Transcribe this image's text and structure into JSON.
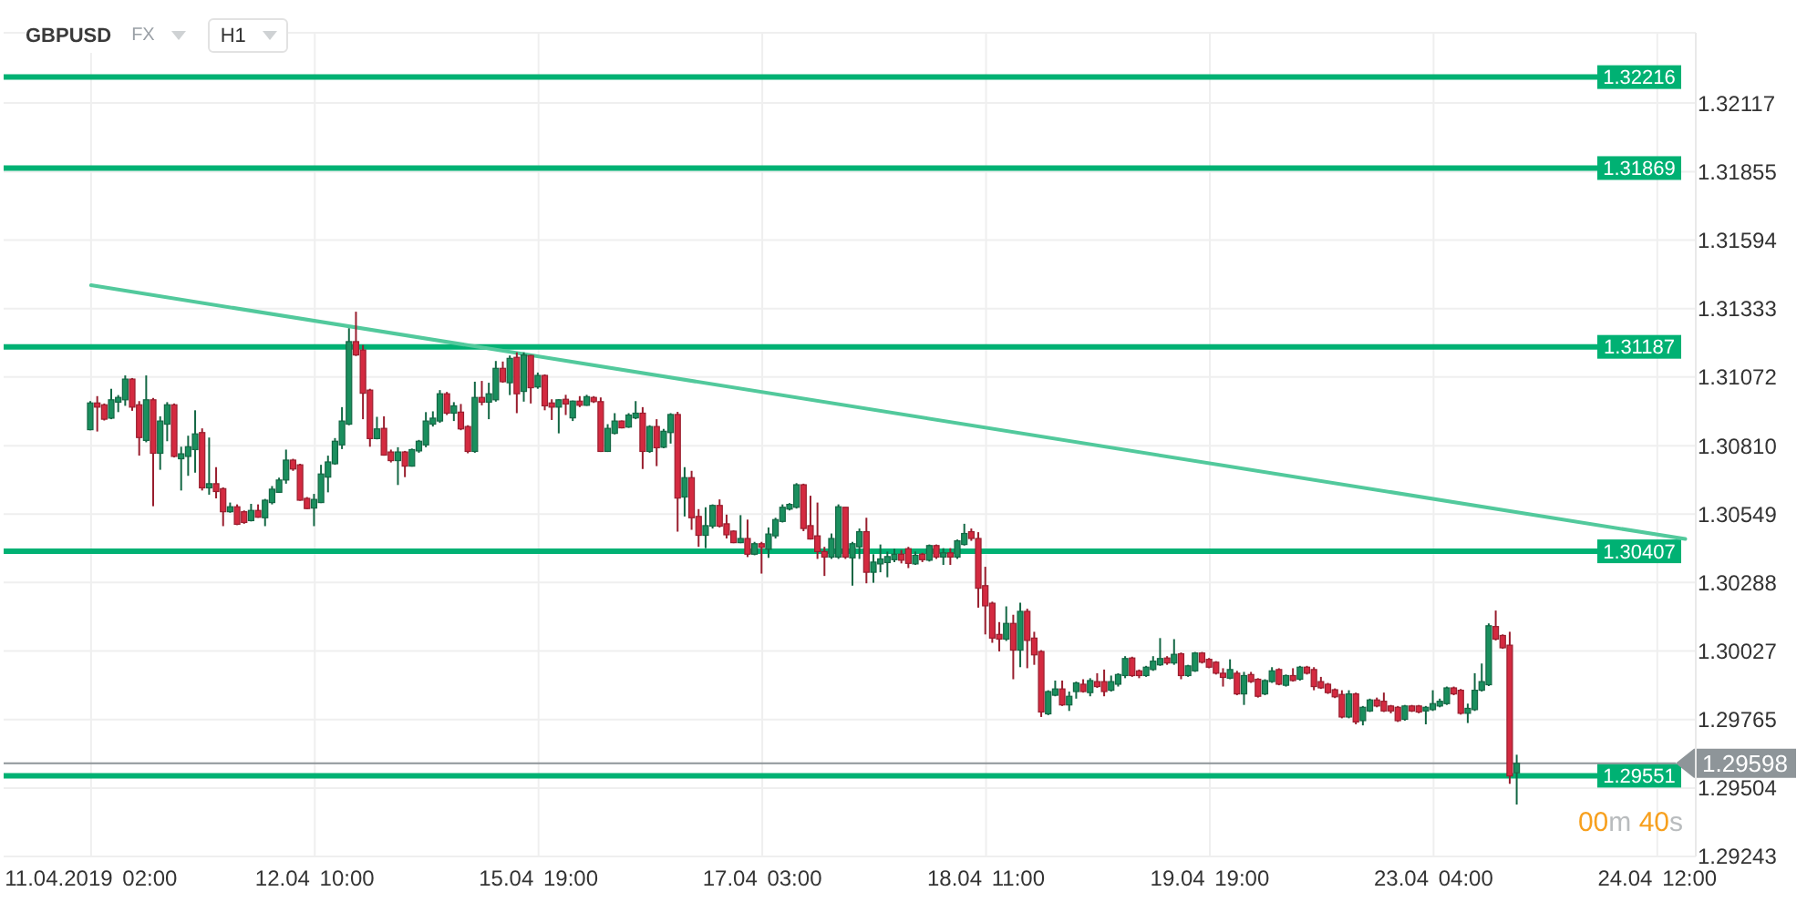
{
  "chart_data": {
    "type": "candlestick",
    "title": "GBPUSD",
    "categories": [
      "11.04.2019 02:00",
      null,
      null,
      null,
      null,
      null,
      null,
      null,
      null,
      null,
      null,
      null,
      null,
      null,
      null,
      null,
      null,
      null,
      null,
      null,
      null,
      null,
      null,
      null,
      null,
      null,
      null,
      null,
      null,
      null,
      null,
      null,
      "12.04 10:00",
      null,
      null,
      null,
      null,
      null,
      null,
      null,
      null,
      null,
      null,
      null,
      null,
      null,
      null,
      null,
      null,
      null,
      null,
      null,
      null,
      null,
      null,
      null,
      null,
      null,
      null,
      null,
      null,
      null,
      null,
      null,
      "15.04 19:00",
      null,
      null,
      null,
      null,
      null,
      null,
      null,
      null,
      null,
      null,
      null,
      null,
      null,
      null,
      null,
      null,
      null,
      null,
      null,
      null,
      null,
      null,
      null,
      null,
      null,
      null,
      null,
      null,
      null,
      null,
      null,
      "17.04 03:00",
      null,
      null,
      null,
      null,
      null,
      null,
      null,
      null,
      null,
      null,
      null,
      null,
      null,
      null,
      null,
      null,
      null,
      null,
      null,
      null,
      null,
      null,
      null,
      null,
      null,
      null,
      null,
      null,
      null,
      null,
      null,
      "18.04 11:00",
      null,
      null,
      null,
      null,
      null,
      null,
      null,
      null,
      null,
      null,
      null,
      null,
      null,
      null,
      null,
      null,
      null,
      null,
      null,
      null,
      null,
      null,
      null,
      null,
      null,
      null,
      null,
      null,
      null,
      null,
      null,
      "19.04 19:00",
      null,
      null,
      null,
      null,
      null,
      null,
      null,
      null,
      null,
      null,
      null,
      null,
      null,
      null,
      null,
      null,
      null,
      null,
      null,
      null,
      null,
      null,
      null,
      null,
      null,
      null,
      null,
      null,
      null,
      null,
      null,
      "23.04 04:00",
      null,
      null,
      null,
      null,
      null,
      null,
      null,
      null,
      null,
      null,
      null,
      null,
      null,
      null,
      null,
      null,
      null,
      null,
      null,
      null,
      null,
      null,
      null,
      null,
      null,
      null,
      null,
      null,
      null,
      null,
      null,
      "24.04 12:00",
      null,
      null,
      null,
      null,
      null
    ],
    "ohlc": [
      [
        1.30871,
        1.3098,
        1.30869,
        1.30973
      ],
      [
        1.30973,
        1.30999,
        1.30864,
        1.30957
      ],
      [
        1.30966,
        1.30971,
        1.30906,
        1.30911
      ],
      [
        1.30915,
        1.31027,
        1.30911,
        1.30985
      ],
      [
        1.30976,
        1.31003,
        1.30938,
        1.30994
      ],
      [
        1.30985,
        1.31078,
        1.30962,
        1.31064
      ],
      [
        1.31064,
        1.31068,
        1.30943,
        1.30957
      ],
      [
        1.30966,
        1.3098,
        1.30772,
        1.30841
      ],
      [
        1.3083,
        1.31078,
        1.30823,
        1.30985
      ],
      [
        1.30985,
        1.30992,
        1.30579,
        1.30781
      ],
      [
        1.30781,
        1.30922,
        1.30718,
        1.30904
      ],
      [
        1.30892,
        1.30976,
        1.30827,
        1.30966
      ],
      [
        1.30966,
        1.30971,
        1.30765,
        1.30769
      ],
      [
        1.3076,
        1.30806,
        1.30639,
        1.30779
      ],
      [
        1.30769,
        1.30848,
        1.30695,
        1.30806
      ],
      [
        1.30795,
        1.30945,
        1.30707,
        1.30855
      ],
      [
        1.3086,
        1.30876,
        1.30639,
        1.30649
      ],
      [
        1.30649,
        1.30841,
        1.30623,
        1.30665
      ],
      [
        1.30665,
        1.30728,
        1.30609,
        1.30635
      ],
      [
        1.30646,
        1.30651,
        1.30503,
        1.30558
      ],
      [
        1.30558,
        1.30593,
        1.30554,
        1.30577
      ],
      [
        1.30577,
        1.30586,
        1.30507,
        1.3051
      ],
      [
        1.30558,
        1.30563,
        1.30512,
        1.30517
      ],
      [
        1.30524,
        1.30588,
        1.30521,
        1.30563
      ],
      [
        1.30563,
        1.30586,
        1.30535,
        1.30537
      ],
      [
        1.30535,
        1.30607,
        1.30503,
        1.30602
      ],
      [
        1.30593,
        1.30656,
        1.30586,
        1.30644
      ],
      [
        1.30632,
        1.30688,
        1.3063,
        1.30679
      ],
      [
        1.30679,
        1.30795,
        1.30665,
        1.30755
      ],
      [
        1.30755,
        1.3076,
        1.30714,
        1.30721
      ],
      [
        1.30737,
        1.30741,
        1.306,
        1.30602
      ],
      [
        1.30609,
        1.30614,
        1.30568,
        1.3057
      ],
      [
        1.30572,
        1.30626,
        1.30503,
        1.30605
      ],
      [
        1.30593,
        1.30737,
        1.30591,
        1.30702
      ],
      [
        1.3069,
        1.30772,
        1.30632,
        1.30748
      ],
      [
        1.30741,
        1.30839,
        1.30737,
        1.30827
      ],
      [
        1.30813,
        1.30957,
        1.30797,
        1.30904
      ],
      [
        1.30892,
        1.31258,
        1.30888,
        1.31207
      ],
      [
        1.31207,
        1.31321,
        1.31152,
        1.31156
      ],
      [
        1.31175,
        1.31194,
        1.30911,
        1.3101
      ],
      [
        1.31022,
        1.31027,
        1.30806,
        1.30837
      ],
      [
        1.30837,
        1.3092,
        1.30834,
        1.30874
      ],
      [
        1.30876,
        1.30922,
        1.30772,
        1.30774
      ],
      [
        1.30786,
        1.30795,
        1.30746,
        1.30753
      ],
      [
        1.30753,
        1.30804,
        1.3066,
        1.30786
      ],
      [
        1.30786,
        1.3079,
        1.3069,
        1.30732
      ],
      [
        1.30732,
        1.30799,
        1.3073,
        1.30795
      ],
      [
        1.3079,
        1.30832,
        1.30783,
        1.30827
      ],
      [
        1.30813,
        1.30938,
        1.30804,
        1.30904
      ],
      [
        1.30892,
        1.30941,
        1.30883,
        1.30915
      ],
      [
        1.30904,
        1.31022,
        1.30897,
        1.31008
      ],
      [
        1.31008,
        1.31015,
        1.30927,
        1.30934
      ],
      [
        1.30934,
        1.30976,
        1.30904,
        1.30962
      ],
      [
        1.30938,
        1.30969,
        1.30869,
        1.30874
      ],
      [
        1.30883,
        1.30888,
        1.30781,
        1.30788
      ],
      [
        1.30788,
        1.31054,
        1.30783,
        1.30994
      ],
      [
        1.30994,
        1.31057,
        1.30964,
        1.30976
      ],
      [
        1.30976,
        1.3105,
        1.30911,
        1.31008
      ],
      [
        1.30985,
        1.31133,
        1.30978,
        1.31105
      ],
      [
        1.31105,
        1.31131,
        1.3105,
        1.31054
      ],
      [
        1.3105,
        1.31154,
        1.31003,
        1.31143
      ],
      [
        1.31147,
        1.31166,
        1.30934,
        1.31008
      ],
      [
        1.31017,
        1.31166,
        1.30978,
        1.31156
      ],
      [
        1.31154,
        1.31156,
        1.30971,
        1.31031
      ],
      [
        1.31034,
        1.31089,
        1.31027,
        1.31078
      ],
      [
        1.31078,
        1.31082,
        1.30945,
        1.30962
      ],
      [
        1.30973,
        1.30987,
        1.30908,
        1.30957
      ],
      [
        1.30957,
        1.30987,
        1.30857,
        1.30985
      ],
      [
        1.30987,
        1.31004,
        1.30927,
        1.30969
      ],
      [
        1.30916,
        1.30982,
        1.30904,
        1.3098
      ],
      [
        1.3098,
        1.30999,
        1.30957,
        1.30964
      ],
      [
        1.30964,
        1.31004,
        1.30962,
        1.30997
      ],
      [
        1.30994,
        1.30999,
        1.30973,
        1.30978
      ],
      [
        1.30978,
        1.30994,
        1.30786,
        1.30788
      ],
      [
        1.30788,
        1.30892,
        1.30786,
        1.30876
      ],
      [
        1.30857,
        1.30934,
        1.30853,
        1.30904
      ],
      [
        1.30904,
        1.30906,
        1.30876,
        1.30878
      ],
      [
        1.30881,
        1.30934,
        1.30878,
        1.30927
      ],
      [
        1.30916,
        1.3098,
        1.30911,
        1.30934
      ],
      [
        1.30934,
        1.30957,
        1.30721,
        1.30788
      ],
      [
        1.30788,
        1.30888,
        1.30783,
        1.30883
      ],
      [
        1.30883,
        1.30911,
        1.30732,
        1.30802
      ],
      [
        1.30804,
        1.30874,
        1.308,
        1.30865
      ],
      [
        1.3086,
        1.30934,
        1.30818,
        1.30929
      ],
      [
        1.30929,
        1.30939,
        1.30482,
        1.3061
      ],
      [
        1.30614,
        1.30728,
        1.3054,
        1.30688
      ],
      [
        1.30688,
        1.30714,
        1.30489,
        1.30535
      ],
      [
        1.3054,
        1.30568,
        1.30424,
        1.30468
      ],
      [
        1.30468,
        1.30575,
        1.30419,
        1.30505
      ],
      [
        1.30503,
        1.30586,
        1.30494,
        1.30582
      ],
      [
        1.30582,
        1.30605,
        1.30498,
        1.30503
      ],
      [
        1.30512,
        1.30547,
        1.30456,
        1.3047
      ],
      [
        1.30484,
        1.30487,
        1.30438,
        1.3044
      ],
      [
        1.3044,
        1.30545,
        1.30438,
        1.30456
      ],
      [
        1.30456,
        1.30528,
        1.30385,
        1.30396
      ],
      [
        1.30396,
        1.30443,
        1.30392,
        1.30436
      ],
      [
        1.30436,
        1.30443,
        1.30322,
        1.30422
      ],
      [
        1.30415,
        1.30498,
        1.30382,
        1.30473
      ],
      [
        1.30466,
        1.30535,
        1.30456,
        1.30528
      ],
      [
        1.30521,
        1.30586,
        1.30517,
        1.30575
      ],
      [
        1.30568,
        1.30591,
        1.30563,
        1.30586
      ],
      [
        1.30575,
        1.30667,
        1.3057,
        1.30661
      ],
      [
        1.30661,
        1.30665,
        1.30484,
        1.30494
      ],
      [
        1.30505,
        1.30619,
        1.30452,
        1.30454
      ],
      [
        1.30466,
        1.30593,
        1.30378,
        1.30406
      ],
      [
        1.30406,
        1.30424,
        1.30313,
        1.30385
      ],
      [
        1.30385,
        1.30475,
        1.30378,
        1.30456
      ],
      [
        1.30385,
        1.30586,
        1.30378,
        1.30577
      ],
      [
        1.30575,
        1.30575,
        1.30378,
        1.30385
      ],
      [
        1.30382,
        1.30443,
        1.30276,
        1.30436
      ],
      [
        1.30424,
        1.30494,
        1.30378,
        1.30482
      ],
      [
        1.30482,
        1.30535,
        1.30285,
        1.30327
      ],
      [
        1.30327,
        1.30396,
        1.30287,
        1.30366
      ],
      [
        1.30359,
        1.30433,
        1.30327,
        1.30378
      ],
      [
        1.30364,
        1.30406,
        1.30308,
        1.30387
      ],
      [
        1.30375,
        1.30417,
        1.30366,
        1.30396
      ],
      [
        1.30396,
        1.30412,
        1.30361,
        1.30373
      ],
      [
        1.30417,
        1.30424,
        1.30343,
        1.30361
      ],
      [
        1.30359,
        1.30406,
        1.30355,
        1.30392
      ],
      [
        1.30396,
        1.30401,
        1.30366,
        1.30375
      ],
      [
        1.30373,
        1.30433,
        1.30368,
        1.30429
      ],
      [
        1.30429,
        1.30433,
        1.30378,
        1.30385
      ],
      [
        1.30385,
        1.30419,
        1.30355,
        1.30401
      ],
      [
        1.30401,
        1.30419,
        1.30355,
        1.30385
      ],
      [
        1.30385,
        1.30452,
        1.30378,
        1.30447
      ],
      [
        1.30433,
        1.30512,
        1.30429,
        1.30475
      ],
      [
        1.30482,
        1.30494,
        1.30447,
        1.30456
      ],
      [
        1.30456,
        1.3048,
        1.30192,
        1.30266
      ],
      [
        1.30276,
        1.30348,
        1.3009,
        1.30199
      ],
      [
        1.30209,
        1.30215,
        1.30058,
        1.30076
      ],
      [
        1.3009,
        1.30137,
        1.30025,
        1.30072
      ],
      [
        1.30072,
        1.30197,
        1.30065,
        1.30132
      ],
      [
        1.30132,
        1.30165,
        1.29919,
        1.3003
      ],
      [
        1.3003,
        1.30211,
        1.29965,
        1.30178
      ],
      [
        1.30178,
        1.30188,
        1.29961,
        1.30067
      ],
      [
        1.30076,
        1.301,
        1.29974,
        1.30012
      ],
      [
        1.30025,
        1.3003,
        1.29775,
        1.29794
      ],
      [
        1.29787,
        1.29877,
        1.29782,
        1.29872
      ],
      [
        1.29858,
        1.29914,
        1.29854,
        1.29882
      ],
      [
        1.29882,
        1.29914,
        1.29817,
        1.29821
      ],
      [
        1.29821,
        1.29872,
        1.29798,
        1.29854
      ],
      [
        1.29872,
        1.2991,
        1.29845,
        1.29905
      ],
      [
        1.299,
        1.29919,
        1.29868,
        1.29872
      ],
      [
        1.29868,
        1.29923,
        1.29854,
        1.29914
      ],
      [
        1.2991,
        1.29942,
        1.29886,
        1.29891
      ],
      [
        1.2991,
        1.29956,
        1.29854,
        1.29872
      ],
      [
        1.29877,
        1.29933,
        1.29872,
        1.2991
      ],
      [
        1.299,
        1.29942,
        1.29891,
        1.29937
      ],
      [
        1.29933,
        1.30007,
        1.29923,
        1.29998
      ],
      [
        1.3,
        1.30005,
        1.29928,
        1.29933
      ],
      [
        1.29951,
        1.29956,
        1.29923,
        1.29933
      ],
      [
        1.29933,
        1.2997,
        1.29928,
        1.29965
      ],
      [
        1.29956,
        1.30007,
        1.29951,
        1.29988
      ],
      [
        1.29974,
        1.30076,
        1.2997,
        1.29998
      ],
      [
        1.3,
        1.30007,
        1.29974,
        1.29981
      ],
      [
        1.29981,
        1.30072,
        1.29974,
        1.30014
      ],
      [
        1.30016,
        1.30021,
        1.29919,
        1.29933
      ],
      [
        1.29933,
        1.29974,
        1.29928,
        1.2997
      ],
      [
        1.29951,
        1.30023,
        1.29947,
        1.30019
      ],
      [
        1.30019,
        1.30023,
        1.29979,
        1.29984
      ],
      [
        1.29995,
        1.3,
        1.29961,
        1.29965
      ],
      [
        1.29984,
        1.29988,
        1.29937,
        1.29942
      ],
      [
        1.29942,
        1.29961,
        1.29891,
        1.29926
      ],
      [
        1.29923,
        1.29995,
        1.29919,
        1.29956
      ],
      [
        1.29942,
        1.29951,
        1.29858,
        1.29863
      ],
      [
        1.29863,
        1.29947,
        1.29821,
        1.29933
      ],
      [
        1.29937,
        1.29947,
        1.29905,
        1.2991
      ],
      [
        1.29919,
        1.29923,
        1.29849,
        1.29854
      ],
      [
        1.29863,
        1.29919,
        1.29858,
        1.29914
      ],
      [
        1.2991,
        1.29965,
        1.29905,
        1.29951
      ],
      [
        1.29956,
        1.29961,
        1.29896,
        1.299
      ],
      [
        1.29896,
        1.29937,
        1.29891,
        1.29933
      ],
      [
        1.29933,
        1.29961,
        1.2991,
        1.29914
      ],
      [
        1.29919,
        1.2997,
        1.29914,
        1.29965
      ],
      [
        1.29965,
        1.2997,
        1.29937,
        1.29942
      ],
      [
        1.29956,
        1.29965,
        1.29877,
        1.29891
      ],
      [
        1.2991,
        1.29928,
        1.29882,
        1.29886
      ],
      [
        1.299,
        1.29905,
        1.29863,
        1.29868
      ],
      [
        1.29879,
        1.29884,
        1.29847,
        1.29852
      ],
      [
        1.29861,
        1.29877,
        1.2977,
        1.29775
      ],
      [
        1.29775,
        1.29877,
        1.2977,
        1.29863
      ],
      [
        1.29863,
        1.29868,
        1.29747,
        1.29756
      ],
      [
        1.29761,
        1.29817,
        1.29743,
        1.29812
      ],
      [
        1.29798,
        1.29845,
        1.29794,
        1.2984
      ],
      [
        1.2984,
        1.29849,
        1.29812,
        1.29817
      ],
      [
        1.29835,
        1.29868,
        1.29794,
        1.29798
      ],
      [
        1.29817,
        1.29821,
        1.29789,
        1.29798
      ],
      [
        1.29812,
        1.29817,
        1.29756,
        1.29761
      ],
      [
        1.29766,
        1.29821,
        1.29761,
        1.29817
      ],
      [
        1.29817,
        1.29821,
        1.29794,
        1.29798
      ],
      [
        1.29817,
        1.29821,
        1.29789,
        1.29794
      ],
      [
        1.29798,
        1.29817,
        1.29747,
        1.29812
      ],
      [
        1.29803,
        1.29877,
        1.29798,
        1.29826
      ],
      [
        1.29817,
        1.29845,
        1.29812,
        1.29835
      ],
      [
        1.29826,
        1.29891,
        1.29821,
        1.29886
      ],
      [
        1.29886,
        1.29891,
        1.29858,
        1.29863
      ],
      [
        1.29877,
        1.29882,
        1.29784,
        1.29789
      ],
      [
        1.29789,
        1.29826,
        1.29752,
        1.29808
      ],
      [
        1.29803,
        1.29942,
        1.29798,
        1.29877
      ],
      [
        1.29877,
        1.29979,
        1.29872,
        1.2991
      ],
      [
        1.29898,
        1.30132,
        1.29893,
        1.30123
      ],
      [
        1.3012,
        1.30181,
        1.30067,
        1.30072
      ],
      [
        1.30086,
        1.3009,
        1.30035,
        1.30039
      ],
      [
        1.30049,
        1.301,
        1.2952,
        1.2955
      ],
      [
        1.29562,
        1.29631,
        1.29441,
        1.29598
      ],
      null,
      null,
      null,
      null,
      null,
      null,
      null,
      null,
      null,
      null,
      null,
      null,
      null,
      null,
      null,
      null,
      null,
      null,
      null,
      null,
      null,
      null,
      null,
      null,
      null
    ],
    "colors": [
      "#1a8f5e",
      "#d42a40",
      "#d42a40",
      "#1a8f5e",
      "#1a8f5e",
      "#1a8f5e",
      "#d42a40",
      "#d42a40",
      "#1a8f5e",
      "#d42a40",
      "#1a8f5e",
      "#1a8f5e",
      "#d42a40",
      "#1a8f5e",
      "#1a8f5e",
      "#1a8f5e",
      "#d42a40",
      "#1a8f5e",
      "#d42a40",
      "#d42a40",
      "#1a8f5e",
      "#d42a40",
      "#d42a40",
      "#1a8f5e",
      "#d42a40",
      "#1a8f5e",
      "#1a8f5e",
      "#1a8f5e",
      "#1a8f5e",
      "#d42a40",
      "#d42a40",
      "#d42a40",
      "#1a8f5e",
      "#1a8f5e",
      "#1a8f5e",
      "#1a8f5e",
      "#1a8f5e",
      "#1a8f5e",
      "#d42a40",
      "#d42a40",
      "#d42a40",
      "#1a8f5e",
      "#d42a40",
      "#d42a40",
      "#1a8f5e",
      "#d42a40",
      "#1a8f5e",
      "#1a8f5e",
      "#1a8f5e",
      "#1a8f5e",
      "#1a8f5e",
      "#d42a40",
      "#1a8f5e",
      "#d42a40",
      "#d42a40",
      "#1a8f5e",
      "#d42a40",
      "#1a8f5e",
      "#1a8f5e",
      "#d42a40",
      "#1a8f5e",
      "#d42a40",
      "#1a8f5e",
      "#d42a40",
      "#1a8f5e",
      "#d42a40",
      "#d42a40",
      "#1a8f5e",
      "#d42a40",
      "#1a8f5e",
      "#d42a40",
      "#1a8f5e",
      "#d42a40",
      "#d42a40",
      "#1a8f5e",
      "#1a8f5e",
      "#d42a40",
      "#1a8f5e",
      "#1a8f5e",
      "#d42a40",
      "#1a8f5e",
      "#d42a40",
      "#1a8f5e",
      "#1a8f5e",
      "#d42a40",
      "#1a8f5e",
      "#d42a40",
      "#d42a40",
      "#1a8f5e",
      "#1a8f5e",
      "#d42a40",
      "#d42a40",
      "#d42a40",
      "#1a8f5e",
      "#d42a40",
      "#1a8f5e",
      "#d42a40",
      "#1a8f5e",
      "#1a8f5e",
      "#1a8f5e",
      "#1a8f5e",
      "#1a8f5e",
      "#d42a40",
      "#d42a40",
      "#d42a40",
      "#d42a40",
      "#1a8f5e",
      "#1a8f5e",
      "#d42a40",
      "#1a8f5e",
      "#1a8f5e",
      "#d42a40",
      "#1a8f5e",
      "#1a8f5e",
      "#1a8f5e",
      "#1a8f5e",
      "#d42a40",
      "#d42a40",
      "#1a8f5e",
      "#d42a40",
      "#1a8f5e",
      "#d42a40",
      "#1a8f5e",
      "#d42a40",
      "#1a8f5e",
      "#1a8f5e",
      "#d42a40",
      "#d42a40",
      "#d42a40",
      "#d42a40",
      "#d42a40",
      "#1a8f5e",
      "#d42a40",
      "#1a8f5e",
      "#d42a40",
      "#d42a40",
      "#d42a40",
      "#1a8f5e",
      "#1a8f5e",
      "#d42a40",
      "#1a8f5e",
      "#1a8f5e",
      "#d42a40",
      "#1a8f5e",
      "#d42a40",
      "#d42a40",
      "#1a8f5e",
      "#1a8f5e",
      "#1a8f5e",
      "#d42a40",
      "#d42a40",
      "#1a8f5e",
      "#1a8f5e",
      "#1a8f5e",
      "#d42a40",
      "#1a8f5e",
      "#d42a40",
      "#1a8f5e",
      "#1a8f5e",
      "#d42a40",
      "#d42a40",
      "#d42a40",
      "#d42a40",
      "#1a8f5e",
      "#d42a40",
      "#1a8f5e",
      "#d42a40",
      "#d42a40",
      "#1a8f5e",
      "#1a8f5e",
      "#d42a40",
      "#1a8f5e",
      "#d42a40",
      "#1a8f5e",
      "#d42a40",
      "#d42a40",
      "#d42a40",
      "#d42a40",
      "#d42a40",
      "#d42a40",
      "#1a8f5e",
      "#d42a40",
      "#1a8f5e",
      "#1a8f5e",
      "#d42a40",
      "#d42a40",
      "#d42a40",
      "#d42a40",
      "#1a8f5e",
      "#d42a40",
      "#d42a40",
      "#1a8f5e",
      "#1a8f5e",
      "#1a8f5e",
      "#1a8f5e",
      "#d42a40",
      "#d42a40",
      "#1a8f5e",
      "#1a8f5e",
      "#1a8f5e",
      "#1a8f5e",
      "#d42a40",
      "#d42a40",
      "#d42a40",
      "#1a8f5e",
      null,
      null,
      null,
      null,
      null,
      null,
      null,
      null,
      null,
      null,
      null,
      null,
      null,
      null,
      null,
      null,
      null,
      null,
      null,
      null,
      null,
      null,
      null,
      null,
      null
    ],
    "series": [
      {
        "type": "line",
        "color": "#52c99c",
        "values": [
          1.31422,
          null,
          null,
          null,
          null,
          null,
          null,
          null,
          null,
          null,
          null,
          null,
          null,
          null,
          null,
          null,
          null,
          null,
          null,
          null,
          null,
          null,
          null,
          null,
          null,
          null,
          null,
          null,
          null,
          null,
          null,
          null,
          null,
          null,
          null,
          null,
          null,
          null,
          null,
          null,
          null,
          null,
          null,
          null,
          null,
          null,
          null,
          null,
          null,
          null,
          null,
          null,
          null,
          null,
          null,
          null,
          null,
          null,
          null,
          null,
          null,
          null,
          null,
          null,
          null,
          null,
          null,
          null,
          null,
          null,
          null,
          null,
          null,
          null,
          null,
          null,
          null,
          null,
          null,
          null,
          null,
          null,
          null,
          null,
          null,
          null,
          null,
          null,
          null,
          null,
          null,
          null,
          null,
          null,
          null,
          null,
          null,
          null,
          null,
          null,
          null,
          null,
          null,
          null,
          null,
          null,
          null,
          null,
          null,
          null,
          null,
          null,
          null,
          null,
          null,
          null,
          null,
          null,
          null,
          null,
          null,
          null,
          null,
          null,
          null,
          null,
          null,
          null,
          null,
          null,
          null,
          null,
          null,
          null,
          null,
          null,
          null,
          null,
          null,
          null,
          null,
          null,
          null,
          null,
          null,
          null,
          null,
          null,
          null,
          null,
          null,
          null,
          null,
          null,
          null,
          null,
          null,
          null,
          null,
          null,
          null,
          null,
          null,
          null,
          null,
          null,
          null,
          null,
          null,
          null,
          null,
          null,
          null,
          null,
          null,
          null,
          null,
          null,
          null,
          null,
          null,
          null,
          null,
          null,
          null,
          null,
          null,
          null,
          null,
          null,
          null,
          null,
          null,
          null,
          null,
          null,
          null,
          null,
          null,
          null,
          null,
          null,
          null,
          null,
          null,
          null,
          null,
          null,
          null,
          null,
          null,
          null,
          null,
          null,
          null,
          null,
          null,
          null,
          null,
          null,
          null,
          null,
          null,
          null,
          null,
          null,
          null,
          null,
          1.30454,
          null
        ]
      }
    ],
    "ylim": [
      1.29243,
      1.32385
    ],
    "yticks": [
      1.29243,
      1.29504,
      1.29765,
      1.30027,
      1.30288,
      1.30549,
      {
        "value": 1.3081,
        "label": "1.30810"
      },
      1.31072,
      1.31333,
      1.31594,
      1.31855,
      1.32117
    ],
    "grid": true,
    "ref_lines": [
      {
        "axis": "y",
        "value": 1.32216,
        "label": "1.32216",
        "color": "#00b173"
      },
      {
        "axis": "y",
        "value": 1.31869,
        "label": "1.31869",
        "color": "#00b173"
      },
      {
        "axis": "y",
        "value": 1.31187,
        "label": "1.31187",
        "color": "#00b173"
      },
      {
        "axis": "y",
        "value": 1.30407,
        "label": "1.30407",
        "color": "#00b173"
      },
      {
        "axis": "y",
        "value": 1.29551,
        "label": "1.29551",
        "color": "#00b173"
      },
      {
        "axis": "y",
        "value": 1.29598,
        "label": "1.29598",
        "color": "#8e9599"
      }
    ],
    "annotations": [
      "FX",
      "H1",
      "00m 40s"
    ]
  }
}
